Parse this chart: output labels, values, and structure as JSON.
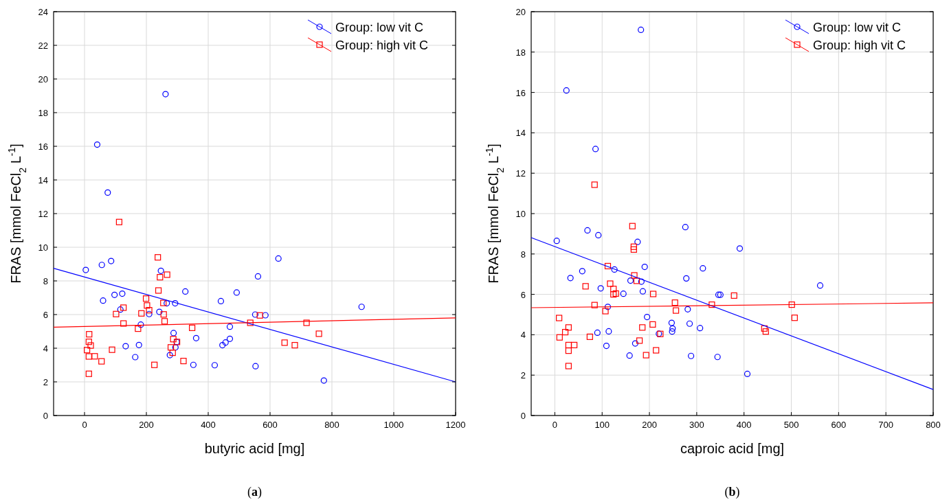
{
  "chart_data": [
    {
      "type": "scatter",
      "xlabel": "butyric acid [mg]",
      "ylabel": "FRAS [mmol FeCl$_{2}$ L$^{-1}$]",
      "annotations": [
        "(a)"
      ],
      "xlim": [
        -100,
        1200
      ],
      "xticks": [
        0,
        200,
        400,
        600,
        800,
        1000,
        1200
      ],
      "ylim": [
        0,
        24
      ],
      "yticks": [
        0,
        2,
        4,
        6,
        8,
        10,
        12,
        14,
        16,
        18,
        20,
        22,
        24
      ],
      "grid": true,
      "legend": "top right",
      "series": [
        {
          "name": "Group: low vit C",
          "color": "#0000ff",
          "marker": "circle",
          "x": [
            4,
            56,
            86,
            60,
            97,
            122,
            116,
            133,
            164,
            176,
            182,
            209,
            247,
            242,
            266,
            293,
            288,
            298,
            294,
            276,
            326,
            361,
            352,
            421,
            441,
            492,
            470,
            470,
            456,
            446,
            552,
            553,
            561,
            585,
            627,
            896,
            774,
            262,
            41,
            75
          ],
          "values": [
            8.65,
            8.95,
            9.18,
            6.83,
            7.17,
            7.24,
            6.3,
            4.12,
            3.47,
            4.19,
            5.4,
            6.03,
            8.6,
            6.16,
            6.67,
            6.67,
            4.9,
            4.37,
            4.05,
            3.59,
            7.37,
            4.6,
            3.01,
            2.99,
            6.8,
            7.31,
            5.28,
            4.56,
            4.34,
            4.18,
            6.0,
            2.93,
            8.27,
            5.96,
            9.33,
            6.46,
            2.08,
            19.1,
            16.1,
            13.25
          ]
        },
        {
          "name": "Group: high vit C",
          "color": "#ff0000",
          "marker": "square",
          "x": [
            112,
            237,
            244,
            267,
            239,
            199,
            202,
            209,
            184,
            255,
            256,
            259,
            126,
            102,
            126,
            173,
            15,
            14,
            20,
            8,
            14,
            33,
            55,
            14,
            89,
            226,
            287,
            299,
            279,
            285,
            320,
            348,
            536,
            567,
            718,
            758,
            647,
            680
          ],
          "values": [
            11.5,
            9.4,
            8.22,
            8.37,
            7.43,
            6.95,
            6.54,
            6.26,
            6.07,
            6.69,
            6.01,
            5.6,
            6.41,
            6.03,
            5.47,
            5.16,
            4.83,
            4.38,
            4.16,
            3.89,
            3.51,
            3.52,
            3.22,
            2.48,
            3.91,
            3.01,
            4.54,
            4.37,
            4.05,
            3.73,
            3.24,
            5.21,
            5.51,
            5.95,
            5.51,
            4.86,
            4.33,
            4.18
          ]
        },
        {
          "type": "line",
          "color": "#0000ff",
          "marker": "none",
          "x": [
            -100,
            1200
          ],
          "values": [
            8.75,
            2.0
          ]
        },
        {
          "type": "line",
          "color": "#ff0000",
          "marker": "none",
          "x": [
            -100,
            1200
          ],
          "values": [
            5.25,
            5.8
          ]
        }
      ]
    },
    {
      "type": "scatter",
      "xlabel": "caproic acid [mg]",
      "ylabel": "FRAS [mmol FeCl$_{2}$ L$^{-1}$]",
      "annotations": [
        "(b)"
      ],
      "xlim": [
        -50,
        800
      ],
      "xticks": [
        0,
        100,
        200,
        300,
        400,
        500,
        600,
        700,
        800
      ],
      "ylim": [
        0,
        20
      ],
      "yticks": [
        0,
        2,
        4,
        6,
        8,
        10,
        12,
        14,
        16,
        18,
        20
      ],
      "grid": true,
      "legend": "top right",
      "series": [
        {
          "name": "Group: low vit C",
          "color": "#0000ff",
          "marker": "circle",
          "x": [
            182,
            24.5,
            86,
            4,
            69,
            92,
            276,
            175,
            313,
            190,
            126,
            58,
            33,
            278,
            160,
            183,
            97,
            186,
            145,
            346,
            350,
            112,
            281,
            195,
            247,
            285,
            307,
            249,
            248,
            90,
            114,
            220,
            170,
            109,
            158,
            288,
            344,
            391,
            561,
            407
          ],
          "values": [
            19.1,
            16.1,
            13.2,
            8.65,
            9.17,
            8.93,
            9.33,
            8.6,
            7.29,
            7.36,
            7.23,
            7.15,
            6.81,
            6.79,
            6.68,
            6.63,
            6.3,
            6.15,
            6.03,
            5.98,
            5.98,
            5.38,
            5.26,
            4.88,
            4.59,
            4.55,
            4.33,
            4.31,
            4.16,
            4.1,
            4.17,
            4.05,
            3.57,
            3.45,
            2.97,
            2.95,
            2.9,
            8.27,
            6.44,
            2.06
          ]
        },
        {
          "name": "Group: high vit C",
          "color": "#ff0000",
          "marker": "square",
          "x": [
            84,
            164,
            167,
            167,
            112,
            168,
            173,
            117,
            65,
            124,
            124,
            129,
            208,
            379,
            254,
            84,
            332,
            107,
            256,
            9,
            207,
            29,
            185,
            22,
            223,
            10,
            74,
            179,
            29,
            41,
            29,
            214,
            193,
            29,
            501,
            507,
            443,
            446
          ],
          "values": [
            11.43,
            9.38,
            8.36,
            8.22,
            7.4,
            6.94,
            6.67,
            6.53,
            6.4,
            6.27,
            6.0,
            6.04,
            6.02,
            5.94,
            5.59,
            5.47,
            5.49,
            5.17,
            5.2,
            4.83,
            4.51,
            4.36,
            4.36,
            4.13,
            4.04,
            3.87,
            3.9,
            3.71,
            3.49,
            3.49,
            3.21,
            3.23,
            2.99,
            2.45,
            5.49,
            4.84,
            4.31,
            4.16
          ]
        },
        {
          "type": "line",
          "color": "#0000ff",
          "marker": "none",
          "x": [
            -50,
            800
          ],
          "values": [
            8.81,
            1.29
          ]
        },
        {
          "type": "line",
          "color": "#ff0000",
          "marker": "none",
          "x": [
            -50,
            800
          ],
          "values": [
            5.34,
            5.58
          ]
        }
      ]
    }
  ]
}
